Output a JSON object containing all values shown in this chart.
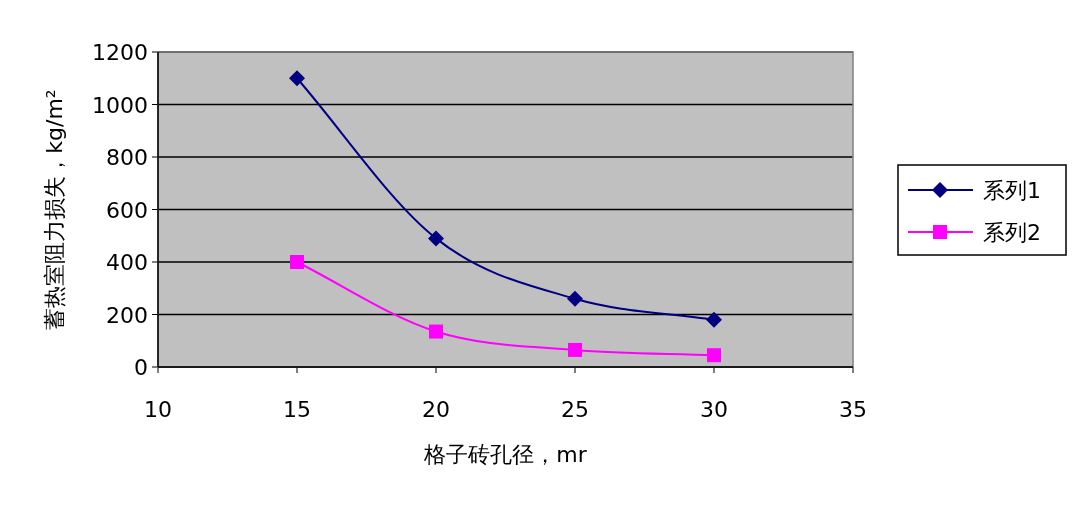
{
  "chart_data": {
    "type": "line",
    "xlabel": "格子砖孔径，mr",
    "ylabel": "蓄热室阻力损失，kg/m²",
    "x": [
      15,
      20,
      25,
      30
    ],
    "series": [
      {
        "name": "系列1",
        "color": "#000080",
        "values": [
          1100,
          490,
          260,
          180
        ],
        "marker": "diamond"
      },
      {
        "name": "系列2",
        "color": "#ff00ff",
        "values": [
          400,
          135,
          65,
          45
        ],
        "marker": "square"
      }
    ],
    "xlim": [
      10,
      35
    ],
    "xticks": [
      10,
      15,
      20,
      25,
      30,
      35
    ],
    "ylim": [
      0,
      1200
    ],
    "yticks": [
      0,
      200,
      400,
      600,
      800,
      1000,
      1200
    ],
    "grid": "y",
    "legend": "right",
    "line_style": "solid"
  }
}
